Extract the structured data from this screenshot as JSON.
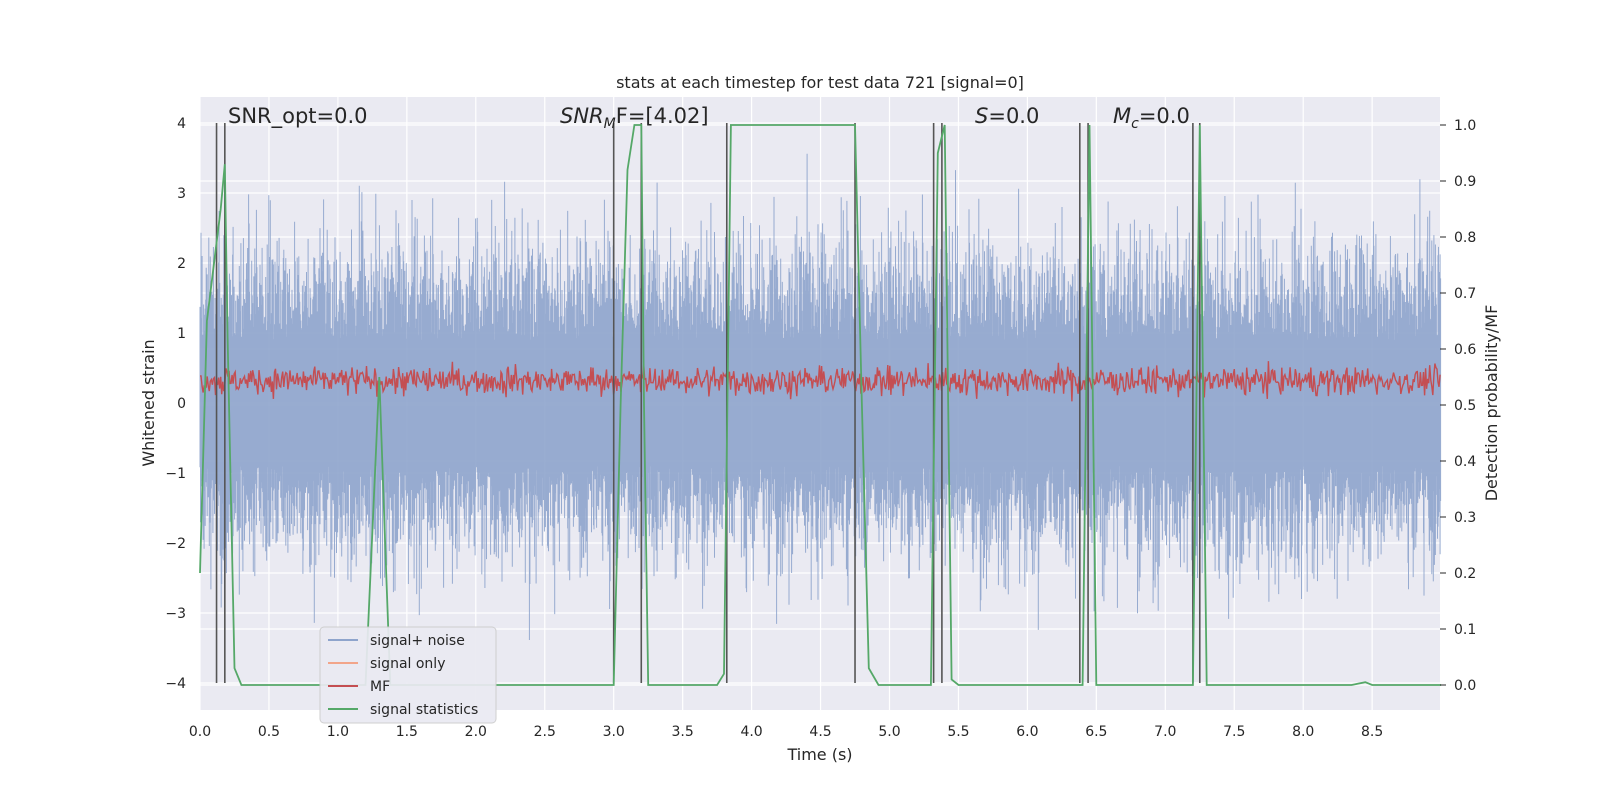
{
  "chart_data": {
    "type": "line",
    "title": "stats at each timestep for test data 721 [signal=0]",
    "xlabel": "Time (s)",
    "ylabel": "Whitened strain",
    "ylabel_right": "Detection probability/MF",
    "xlim": [
      0.0,
      9.0
    ],
    "ylim": [
      -4.4,
      4.4
    ],
    "ylim_right": [
      -0.05,
      1.05
    ],
    "xticks": [
      "0.0",
      "0.5",
      "1.0",
      "1.5",
      "2.0",
      "2.5",
      "3.0",
      "3.5",
      "4.0",
      "4.5",
      "5.0",
      "5.5",
      "6.0",
      "6.5",
      "7.0",
      "7.5",
      "8.0",
      "8.5"
    ],
    "yticks_left": [
      "4",
      "3",
      "2",
      "1",
      "0",
      "−1",
      "−2",
      "−3",
      "−4"
    ],
    "yticks_right": [
      "1.0",
      "0.9",
      "0.8",
      "0.7",
      "0.6",
      "0.5",
      "0.4",
      "0.3",
      "0.2",
      "0.1",
      "0.0"
    ],
    "grid": true,
    "legend_placement": "lower-left",
    "annotations": {
      "snr_opt": "SNR_opt=0.0",
      "snr_mf_base": "SNR",
      "snr_mf_sub": "M",
      "snr_mf_rest": "F=[4.02]",
      "s_sym": "S",
      "s_rest": "=0.0",
      "mc_base": "M",
      "mc_sub": "c",
      "mc_rest": "=0.0"
    },
    "series": [
      {
        "name": "signal+ noise",
        "color": "#8ea4cc",
        "amplitude_range": [
          -3.9,
          3.9
        ]
      },
      {
        "name": "signal only",
        "color": "#f2a58a",
        "values": []
      },
      {
        "name": "MF",
        "color": "#c44e52",
        "range": [
          0.0,
          0.95
        ]
      },
      {
        "name": "signal statistics",
        "color": "#55a868",
        "points": [
          [
            0.0,
            0.2
          ],
          [
            0.05,
            0.65
          ],
          [
            0.1,
            0.75
          ],
          [
            0.15,
            0.85
          ],
          [
            0.18,
            0.93
          ],
          [
            0.2,
            0.62
          ],
          [
            0.25,
            0.03
          ],
          [
            0.3,
            0.0
          ],
          [
            1.2,
            0.0
          ],
          [
            1.3,
            0.55
          ],
          [
            1.35,
            0.2
          ],
          [
            1.38,
            0.0
          ],
          [
            3.0,
            0.0
          ],
          [
            3.05,
            0.5
          ],
          [
            3.1,
            0.92
          ],
          [
            3.15,
            1.0
          ],
          [
            3.2,
            1.0
          ],
          [
            3.22,
            0.5
          ],
          [
            3.25,
            0.0
          ],
          [
            3.75,
            0.0
          ],
          [
            3.8,
            0.02
          ],
          [
            3.85,
            1.0
          ],
          [
            4.75,
            1.0
          ],
          [
            4.8,
            0.5
          ],
          [
            4.85,
            0.03
          ],
          [
            4.92,
            0.0
          ],
          [
            5.3,
            0.0
          ],
          [
            5.35,
            0.95
          ],
          [
            5.4,
            1.0
          ],
          [
            5.45,
            0.01
          ],
          [
            5.5,
            0.0
          ],
          [
            6.4,
            0.0
          ],
          [
            6.45,
            1.0
          ],
          [
            6.5,
            0.0
          ],
          [
            7.2,
            0.0
          ],
          [
            7.25,
            1.0
          ],
          [
            7.3,
            0.0
          ],
          [
            8.35,
            0.0
          ],
          [
            8.45,
            0.005
          ],
          [
            8.5,
            0.0
          ],
          [
            9.0,
            0.0
          ]
        ]
      },
      {
        "name": "detection markers",
        "color": "#555555",
        "x": [
          0.12,
          0.18,
          3.0,
          3.2,
          3.82,
          4.75,
          5.32,
          5.38,
          6.38,
          6.44,
          7.2,
          7.25
        ]
      }
    ]
  }
}
